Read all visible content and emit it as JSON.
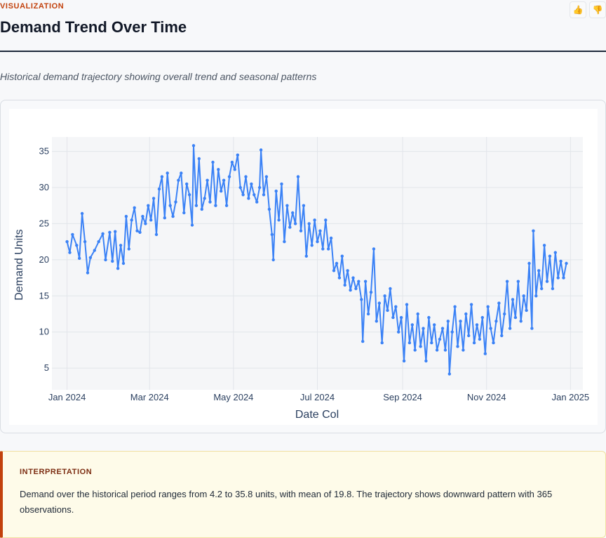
{
  "header": {
    "eyebrow": "VISUALIZATION",
    "title": "Demand Trend Over Time",
    "subtitle": "Historical demand trajectory showing overall trend and seasonal patterns",
    "thumbs_up_icon": "thumbs-up-icon",
    "thumbs_down_icon": "thumbs-down-icon"
  },
  "colors": {
    "line": "#3b82f6",
    "accent": "#c2410c",
    "plot_bg": "#f5f6f8"
  },
  "chart_data": {
    "type": "line",
    "xlabel": "Date Col",
    "ylabel": "Demand Units",
    "x_start": "2024-01-01",
    "x_end": "2024-12-30",
    "xlim": [
      "2023-12-21",
      "2025-01-10"
    ],
    "ylim": [
      2,
      37
    ],
    "x_ticks": [
      {
        "label": "Jan 2024",
        "date": "2024-01-01"
      },
      {
        "label": "Mar 2024",
        "date": "2024-03-01"
      },
      {
        "label": "May 2024",
        "date": "2024-05-01"
      },
      {
        "label": "Jul 2024",
        "date": "2024-07-01"
      },
      {
        "label": "Sep 2024",
        "date": "2024-09-01"
      },
      {
        "label": "Nov 2024",
        "date": "2024-11-01"
      },
      {
        "label": "Jan 2025",
        "date": "2025-01-01"
      }
    ],
    "y_ticks": [
      5,
      10,
      15,
      20,
      25,
      30,
      35
    ],
    "grid": true,
    "series": [
      {
        "points": [
          {
            "x": "2024-01-01",
            "y": 22.5
          },
          {
            "x": "2024-01-03",
            "y": 21.0
          },
          {
            "x": "2024-01-05",
            "y": 23.5
          },
          {
            "x": "2024-01-08",
            "y": 22.0
          },
          {
            "x": "2024-01-10",
            "y": 20.2
          },
          {
            "x": "2024-01-12",
            "y": 26.4
          },
          {
            "x": "2024-01-14",
            "y": 22.5
          },
          {
            "x": "2024-01-16",
            "y": 18.2
          },
          {
            "x": "2024-01-18",
            "y": 20.3
          },
          {
            "x": "2024-01-21",
            "y": 21.3
          },
          {
            "x": "2024-01-24",
            "y": 22.5
          },
          {
            "x": "2024-01-27",
            "y": 23.6
          },
          {
            "x": "2024-01-29",
            "y": 20.0
          },
          {
            "x": "2024-02-01",
            "y": 23.8
          },
          {
            "x": "2024-02-03",
            "y": 19.8
          },
          {
            "x": "2024-02-05",
            "y": 23.9
          },
          {
            "x": "2024-02-07",
            "y": 18.8
          },
          {
            "x": "2024-02-09",
            "y": 22.0
          },
          {
            "x": "2024-02-11",
            "y": 19.5
          },
          {
            "x": "2024-02-13",
            "y": 26.0
          },
          {
            "x": "2024-02-15",
            "y": 21.5
          },
          {
            "x": "2024-02-17",
            "y": 25.5
          },
          {
            "x": "2024-02-19",
            "y": 27.2
          },
          {
            "x": "2024-02-21",
            "y": 24.0
          },
          {
            "x": "2024-02-23",
            "y": 23.8
          },
          {
            "x": "2024-02-25",
            "y": 26.0
          },
          {
            "x": "2024-02-27",
            "y": 25.0
          },
          {
            "x": "2024-02-29",
            "y": 27.5
          },
          {
            "x": "2024-03-02",
            "y": 25.5
          },
          {
            "x": "2024-03-04",
            "y": 28.5
          },
          {
            "x": "2024-03-06",
            "y": 23.5
          },
          {
            "x": "2024-03-08",
            "y": 29.8
          },
          {
            "x": "2024-03-10",
            "y": 31.5
          },
          {
            "x": "2024-03-12",
            "y": 25.8
          },
          {
            "x": "2024-03-14",
            "y": 32.0
          },
          {
            "x": "2024-03-16",
            "y": 27.5
          },
          {
            "x": "2024-03-18",
            "y": 26.0
          },
          {
            "x": "2024-03-20",
            "y": 28.0
          },
          {
            "x": "2024-03-22",
            "y": 31.0
          },
          {
            "x": "2024-03-24",
            "y": 32.0
          },
          {
            "x": "2024-03-26",
            "y": 26.5
          },
          {
            "x": "2024-03-28",
            "y": 30.5
          },
          {
            "x": "2024-03-30",
            "y": 29.0
          },
          {
            "x": "2024-04-01",
            "y": 24.8
          },
          {
            "x": "2024-04-02",
            "y": 35.8
          },
          {
            "x": "2024-04-04",
            "y": 27.5
          },
          {
            "x": "2024-04-06",
            "y": 34.0
          },
          {
            "x": "2024-04-08",
            "y": 27.0
          },
          {
            "x": "2024-04-10",
            "y": 28.5
          },
          {
            "x": "2024-04-12",
            "y": 31.0
          },
          {
            "x": "2024-04-14",
            "y": 28.0
          },
          {
            "x": "2024-04-16",
            "y": 33.5
          },
          {
            "x": "2024-04-18",
            "y": 27.5
          },
          {
            "x": "2024-04-20",
            "y": 32.5
          },
          {
            "x": "2024-04-22",
            "y": 29.5
          },
          {
            "x": "2024-04-24",
            "y": 31.0
          },
          {
            "x": "2024-04-26",
            "y": 27.5
          },
          {
            "x": "2024-04-28",
            "y": 31.5
          },
          {
            "x": "2024-04-30",
            "y": 33.5
          },
          {
            "x": "2024-05-02",
            "y": 32.5
          },
          {
            "x": "2024-05-04",
            "y": 34.5
          },
          {
            "x": "2024-05-06",
            "y": 30.0
          },
          {
            "x": "2024-05-08",
            "y": 29.0
          },
          {
            "x": "2024-05-10",
            "y": 31.5
          },
          {
            "x": "2024-05-12",
            "y": 28.5
          },
          {
            "x": "2024-05-14",
            "y": 30.5
          },
          {
            "x": "2024-05-16",
            "y": 29.0
          },
          {
            "x": "2024-05-18",
            "y": 28.0
          },
          {
            "x": "2024-05-20",
            "y": 30.0
          },
          {
            "x": "2024-05-21",
            "y": 35.2
          },
          {
            "x": "2024-05-23",
            "y": 29.0
          },
          {
            "x": "2024-05-25",
            "y": 31.5
          },
          {
            "x": "2024-05-27",
            "y": 27.0
          },
          {
            "x": "2024-05-29",
            "y": 23.5
          },
          {
            "x": "2024-05-30",
            "y": 20.0
          },
          {
            "x": "2024-06-01",
            "y": 29.5
          },
          {
            "x": "2024-06-03",
            "y": 25.5
          },
          {
            "x": "2024-06-05",
            "y": 30.5
          },
          {
            "x": "2024-06-07",
            "y": 22.5
          },
          {
            "x": "2024-06-09",
            "y": 27.5
          },
          {
            "x": "2024-06-11",
            "y": 24.5
          },
          {
            "x": "2024-06-13",
            "y": 26.5
          },
          {
            "x": "2024-06-15",
            "y": 25.0
          },
          {
            "x": "2024-06-17",
            "y": 31.5
          },
          {
            "x": "2024-06-19",
            "y": 24.0
          },
          {
            "x": "2024-06-21",
            "y": 27.5
          },
          {
            "x": "2024-06-23",
            "y": 20.5
          },
          {
            "x": "2024-06-25",
            "y": 25.0
          },
          {
            "x": "2024-06-27",
            "y": 22.0
          },
          {
            "x": "2024-06-29",
            "y": 25.5
          },
          {
            "x": "2024-07-01",
            "y": 22.5
          },
          {
            "x": "2024-07-03",
            "y": 24.0
          },
          {
            "x": "2024-07-05",
            "y": 21.5
          },
          {
            "x": "2024-07-07",
            "y": 25.5
          },
          {
            "x": "2024-07-09",
            "y": 21.5
          },
          {
            "x": "2024-07-11",
            "y": 23.0
          },
          {
            "x": "2024-07-13",
            "y": 18.5
          },
          {
            "x": "2024-07-15",
            "y": 19.5
          },
          {
            "x": "2024-07-17",
            "y": 17.5
          },
          {
            "x": "2024-07-19",
            "y": 20.5
          },
          {
            "x": "2024-07-21",
            "y": 16.5
          },
          {
            "x": "2024-07-23",
            "y": 18.5
          },
          {
            "x": "2024-07-25",
            "y": 15.8
          },
          {
            "x": "2024-07-27",
            "y": 17.5
          },
          {
            "x": "2024-07-29",
            "y": 16.0
          },
          {
            "x": "2024-07-31",
            "y": 17.0
          },
          {
            "x": "2024-08-02",
            "y": 14.5
          },
          {
            "x": "2024-08-03",
            "y": 8.7
          },
          {
            "x": "2024-08-05",
            "y": 17.0
          },
          {
            "x": "2024-08-07",
            "y": 12.5
          },
          {
            "x": "2024-08-09",
            "y": 15.5
          },
          {
            "x": "2024-08-11",
            "y": 21.5
          },
          {
            "x": "2024-08-13",
            "y": 11.5
          },
          {
            "x": "2024-08-15",
            "y": 14.0
          },
          {
            "x": "2024-08-17",
            "y": 8.5
          },
          {
            "x": "2024-08-19",
            "y": 15.0
          },
          {
            "x": "2024-08-21",
            "y": 13.0
          },
          {
            "x": "2024-08-23",
            "y": 16.0
          },
          {
            "x": "2024-08-25",
            "y": 12.0
          },
          {
            "x": "2024-08-27",
            "y": 13.5
          },
          {
            "x": "2024-08-29",
            "y": 10.0
          },
          {
            "x": "2024-08-31",
            "y": 12.0
          },
          {
            "x": "2024-09-02",
            "y": 6.0
          },
          {
            "x": "2024-09-04",
            "y": 13.8
          },
          {
            "x": "2024-09-06",
            "y": 8.5
          },
          {
            "x": "2024-09-08",
            "y": 11.0
          },
          {
            "x": "2024-09-10",
            "y": 7.5
          },
          {
            "x": "2024-09-12",
            "y": 12.5
          },
          {
            "x": "2024-09-14",
            "y": 8.0
          },
          {
            "x": "2024-09-16",
            "y": 10.5
          },
          {
            "x": "2024-09-18",
            "y": 6.0
          },
          {
            "x": "2024-09-20",
            "y": 12.0
          },
          {
            "x": "2024-09-22",
            "y": 8.5
          },
          {
            "x": "2024-09-24",
            "y": 11.0
          },
          {
            "x": "2024-09-26",
            "y": 7.5
          },
          {
            "x": "2024-09-28",
            "y": 9.0
          },
          {
            "x": "2024-09-30",
            "y": 10.5
          },
          {
            "x": "2024-10-02",
            "y": 7.5
          },
          {
            "x": "2024-10-04",
            "y": 11.5
          },
          {
            "x": "2024-10-05",
            "y": 4.2
          },
          {
            "x": "2024-10-07",
            "y": 10.0
          },
          {
            "x": "2024-10-09",
            "y": 13.5
          },
          {
            "x": "2024-10-11",
            "y": 8.0
          },
          {
            "x": "2024-10-13",
            "y": 11.5
          },
          {
            "x": "2024-10-15",
            "y": 7.5
          },
          {
            "x": "2024-10-17",
            "y": 12.5
          },
          {
            "x": "2024-10-19",
            "y": 9.5
          },
          {
            "x": "2024-10-21",
            "y": 13.8
          },
          {
            "x": "2024-10-23",
            "y": 8.5
          },
          {
            "x": "2024-10-25",
            "y": 11.0
          },
          {
            "x": "2024-10-27",
            "y": 9.0
          },
          {
            "x": "2024-10-29",
            "y": 12.0
          },
          {
            "x": "2024-10-31",
            "y": 7.0
          },
          {
            "x": "2024-11-02",
            "y": 13.5
          },
          {
            "x": "2024-11-04",
            "y": 10.5
          },
          {
            "x": "2024-11-06",
            "y": 8.5
          },
          {
            "x": "2024-11-08",
            "y": 11.5
          },
          {
            "x": "2024-11-10",
            "y": 14.0
          },
          {
            "x": "2024-11-12",
            "y": 9.5
          },
          {
            "x": "2024-11-14",
            "y": 12.5
          },
          {
            "x": "2024-11-16",
            "y": 17.0
          },
          {
            "x": "2024-11-18",
            "y": 10.5
          },
          {
            "x": "2024-11-20",
            "y": 14.5
          },
          {
            "x": "2024-11-22",
            "y": 12.0
          },
          {
            "x": "2024-11-24",
            "y": 17.0
          },
          {
            "x": "2024-11-26",
            "y": 11.5
          },
          {
            "x": "2024-11-28",
            "y": 15.0
          },
          {
            "x": "2024-11-30",
            "y": 13.0
          },
          {
            "x": "2024-12-02",
            "y": 19.5
          },
          {
            "x": "2024-12-04",
            "y": 10.5
          },
          {
            "x": "2024-12-05",
            "y": 24.0
          },
          {
            "x": "2024-12-07",
            "y": 15.0
          },
          {
            "x": "2024-12-09",
            "y": 18.5
          },
          {
            "x": "2024-12-11",
            "y": 16.0
          },
          {
            "x": "2024-12-13",
            "y": 22.0
          },
          {
            "x": "2024-12-15",
            "y": 17.0
          },
          {
            "x": "2024-12-17",
            "y": 20.5
          },
          {
            "x": "2024-12-19",
            "y": 16.0
          },
          {
            "x": "2024-12-21",
            "y": 21.0
          },
          {
            "x": "2024-12-23",
            "y": 17.5
          },
          {
            "x": "2024-12-25",
            "y": 19.8
          },
          {
            "x": "2024-12-27",
            "y": 17.5
          },
          {
            "x": "2024-12-29",
            "y": 19.5
          }
        ]
      }
    ]
  },
  "interpretation": {
    "heading": "INTERPRETATION",
    "body": "Demand over the historical period ranges from 4.2 to 35.8 units, with mean of 19.8. The trajectory shows downward pattern with 365 observations."
  }
}
